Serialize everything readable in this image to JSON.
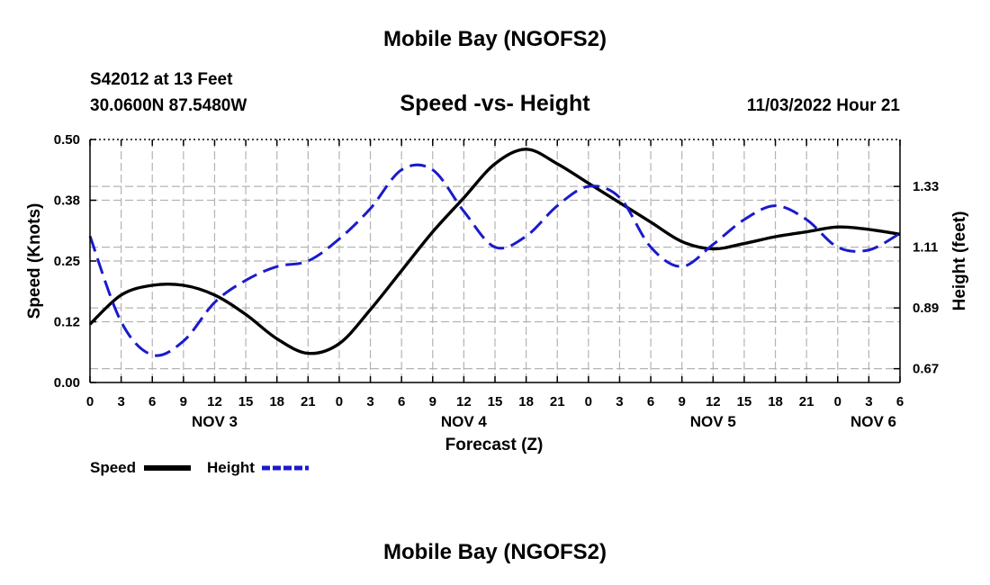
{
  "header": {
    "title": "Mobile Bay (NGOFS2)",
    "station": "S42012 at 13 Feet",
    "coords": "30.0600N  87.5480W",
    "subtitle": "Speed -vs- Height",
    "datetime": "11/03/2022 Hour 21",
    "footer_title": "Mobile Bay (NGOFS2)"
  },
  "colors": {
    "speed": "#000000",
    "height": "#1a1acc",
    "grid": "#b4b4b4"
  },
  "chart_data": {
    "type": "line",
    "title": "Speed -vs- Height",
    "xlabel": "Forecast (Z)",
    "ylabel": "Speed (Knots)",
    "y2label": "Height (feet)",
    "x_range": [
      0,
      78
    ],
    "x_ticks": [
      0,
      3,
      6,
      9,
      12,
      15,
      18,
      21,
      24,
      27,
      30,
      33,
      36,
      39,
      42,
      45,
      48,
      51,
      54,
      57,
      60,
      63,
      66,
      69,
      72,
      75,
      78
    ],
    "x_tick_labels": [
      "0",
      "3",
      "6",
      "9",
      "12",
      "15",
      "18",
      "21",
      "0",
      "3",
      "6",
      "9",
      "12",
      "15",
      "18",
      "21",
      "0",
      "3",
      "6",
      "9",
      "12",
      "15",
      "18",
      "21",
      "0",
      "3",
      "6"
    ],
    "date_labels": [
      {
        "x": 12,
        "label": "NOV 3"
      },
      {
        "x": 36,
        "label": "NOV 4"
      },
      {
        "x": 60,
        "label": "NOV 5"
      },
      {
        "x": 78,
        "label": "NOV 6"
      }
    ],
    "ylim": [
      0,
      0.5
    ],
    "y_ticks": [
      0,
      0.125,
      0.25,
      0.375,
      0.5
    ],
    "y_tick_labels": [
      "0.00",
      "0.12",
      "0.25",
      "0.38",
      "0.50"
    ],
    "y2lim": [
      0.62,
      1.5
    ],
    "y2_ticks": [
      0.67,
      0.89,
      1.11,
      1.33
    ],
    "y2_tick_labels": [
      "0.67",
      "0.89",
      "1.11",
      "1.33"
    ],
    "grid": true,
    "legend_position": "bottom-left",
    "series": [
      {
        "name": "Speed",
        "axis": "left",
        "style": "solid",
        "x": [
          0,
          3,
          6,
          9,
          12,
          15,
          18,
          21,
          24,
          27,
          30,
          33,
          36,
          39,
          42,
          45,
          48,
          51,
          54,
          57,
          60,
          63,
          66,
          69,
          72,
          75,
          78
        ],
        "values": [
          0.12,
          0.18,
          0.2,
          0.2,
          0.18,
          0.14,
          0.09,
          0.06,
          0.08,
          0.15,
          0.23,
          0.31,
          0.38,
          0.45,
          0.48,
          0.45,
          0.41,
          0.37,
          0.33,
          0.29,
          0.275,
          0.286,
          0.3,
          0.31,
          0.32,
          0.315,
          0.305
        ]
      },
      {
        "name": "Height",
        "axis": "right",
        "style": "dashed",
        "x": [
          0,
          3,
          6,
          9,
          12,
          15,
          18,
          21,
          24,
          27,
          30,
          33,
          36,
          39,
          42,
          45,
          48,
          51,
          54,
          57,
          60,
          63,
          66,
          69,
          72,
          75,
          78
        ],
        "values": [
          1.15,
          0.84,
          0.72,
          0.77,
          0.91,
          0.99,
          1.04,
          1.06,
          1.14,
          1.25,
          1.39,
          1.39,
          1.24,
          1.11,
          1.15,
          1.26,
          1.33,
          1.29,
          1.11,
          1.04,
          1.12,
          1.21,
          1.26,
          1.21,
          1.11,
          1.1,
          1.16
        ]
      }
    ]
  }
}
